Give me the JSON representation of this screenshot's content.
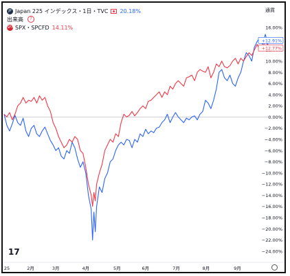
{
  "legend": {
    "main_symbol_badge": "JP",
    "main_title": "Japan 225 インデックス・1日・TVC",
    "main_change": "20.18%",
    "sub_label": "出来高",
    "compare_badge": "SPX",
    "compare_title": "SPX・SPCFD",
    "compare_change": "14.11%"
  },
  "currency_label": "通貨",
  "colors": {
    "japan": "#2962ff",
    "spx": "#f23645",
    "zero_line": "#b2b5be",
    "axis_text": "#131722"
  },
  "chart_data": {
    "type": "line",
    "title": "",
    "xlabel": "",
    "ylabel": "",
    "ylim": [
      -25,
      17
    ],
    "yticks": [
      "16.00%",
      "14.00%",
      "12.00%",
      "10.00%",
      "8.00%",
      "6.00%",
      "4.00%",
      "2.00%",
      "0.00%",
      "−2.00%",
      "−4.00%",
      "−6.00%",
      "−8.00%",
      "−10.00%",
      "−12.00%",
      "−14.00%",
      "−16.00%",
      "−18.00%",
      "−20.00%",
      "−22.00%",
      "−24.00%"
    ],
    "ytick_values": [
      16,
      14,
      12,
      10,
      8,
      6,
      4,
      2,
      0,
      -2,
      -4,
      -6,
      -8,
      -10,
      -12,
      -14,
      -16,
      -18,
      -20,
      -22,
      -24
    ],
    "xticks": [
      "25",
      "2月",
      "3月",
      "4月",
      "5月",
      "6月",
      "7月",
      "8月",
      "9月"
    ],
    "xtick_values": [
      0,
      39,
      76,
      120,
      166,
      208,
      253,
      297,
      343
    ],
    "x_range": [
      0,
      390
    ],
    "last_labels": [
      {
        "series": "Japan 225",
        "text": "+12.91%",
        "value": 12.91
      },
      {
        "series": "SPX",
        "text": "+12.77%",
        "value": 12.77
      }
    ],
    "series": [
      {
        "name": "Japan 225",
        "color": "#2962ff",
        "x": [
          0,
          4,
          8,
          12,
          16,
          20,
          24,
          28,
          32,
          36,
          40,
          44,
          48,
          52,
          56,
          60,
          64,
          68,
          72,
          76,
          80,
          84,
          88,
          92,
          96,
          100,
          104,
          108,
          112,
          116,
          120,
          124,
          128,
          130,
          132,
          134,
          136,
          140,
          144,
          148,
          152,
          156,
          160,
          164,
          168,
          172,
          176,
          180,
          184,
          188,
          192,
          196,
          200,
          204,
          208,
          212,
          216,
          220,
          224,
          228,
          232,
          236,
          240,
          244,
          248,
          252,
          256,
          260,
          264,
          268,
          272,
          276,
          280,
          284,
          288,
          292,
          296,
          300,
          304,
          308,
          312,
          316,
          320,
          324,
          328,
          332,
          336,
          340,
          344,
          348,
          352,
          356,
          360,
          364,
          368,
          372,
          376,
          380,
          384,
          388
        ],
        "y": [
          0.5,
          -1.5,
          -2.5,
          -1.2,
          0.3,
          -1.0,
          -1.5,
          -0.2,
          -2.5,
          -3.5,
          -2.0,
          -1.5,
          -3.0,
          -3.5,
          -2.5,
          -1.8,
          -3.0,
          -4.2,
          -5.0,
          -6.0,
          -5.5,
          -7.0,
          -7.5,
          -6.0,
          -6.5,
          -4.5,
          -5.5,
          -7.5,
          -9.0,
          -8.0,
          -10.0,
          -14.0,
          -16.5,
          -22.0,
          -17.0,
          -20.5,
          -16.0,
          -12.5,
          -13.5,
          -11.0,
          -10.0,
          -8.0,
          -7.5,
          -6.0,
          -5.0,
          -4.5,
          -5.0,
          -4.0,
          -4.2,
          -5.5,
          -4.0,
          -4.5,
          -3.0,
          -3.5,
          -2.2,
          -3.0,
          -2.5,
          -2.8,
          -2.0,
          -1.8,
          -1.0,
          -0.5,
          0.5,
          -1.0,
          0.0,
          0.8,
          0.0,
          -0.5,
          -1.0,
          -0.2,
          -0.5,
          0.0,
          0.2,
          -0.5,
          0.5,
          1.0,
          3.0,
          2.5,
          1.5,
          3.0,
          5.0,
          8.0,
          8.5,
          7.0,
          6.5,
          7.5,
          6.0,
          5.5,
          7.0,
          8.0,
          10.0,
          11.5,
          11.0,
          10.0,
          12.5,
          13.5,
          14.2,
          13.0,
          14.8,
          12.91
        ]
      },
      {
        "name": "SPX",
        "color": "#f23645",
        "x": [
          0,
          4,
          8,
          12,
          16,
          20,
          24,
          28,
          32,
          36,
          40,
          44,
          48,
          52,
          56,
          60,
          64,
          68,
          72,
          76,
          80,
          84,
          88,
          92,
          96,
          100,
          104,
          108,
          112,
          116,
          120,
          124,
          128,
          130,
          132,
          134,
          136,
          140,
          144,
          148,
          152,
          156,
          160,
          164,
          168,
          172,
          176,
          180,
          184,
          188,
          192,
          196,
          200,
          204,
          208,
          212,
          216,
          220,
          224,
          228,
          232,
          236,
          240,
          244,
          248,
          252,
          256,
          260,
          264,
          268,
          272,
          276,
          280,
          284,
          288,
          292,
          296,
          300,
          304,
          308,
          312,
          316,
          320,
          324,
          328,
          332,
          336,
          340,
          344,
          348,
          352,
          356,
          360,
          364,
          368,
          372,
          376,
          380,
          384,
          388
        ],
        "y": [
          0.5,
          0.0,
          0.8,
          -0.5,
          0.5,
          2.0,
          2.5,
          3.5,
          2.5,
          3.0,
          2.8,
          3.5,
          2.5,
          3.8,
          3.0,
          3.5,
          2.0,
          1.0,
          -1.0,
          -2.0,
          -3.5,
          -4.5,
          -5.5,
          -5.0,
          -4.0,
          -4.5,
          -3.5,
          -4.0,
          -6.0,
          -6.5,
          -9.0,
          -12.0,
          -14.0,
          -16.0,
          -13.5,
          -15.0,
          -12.0,
          -10.0,
          -8.5,
          -6.0,
          -5.0,
          -4.0,
          -4.5,
          -3.0,
          -3.5,
          -1.0,
          0.5,
          0.0,
          0.3,
          1.0,
          0.2,
          0.8,
          1.5,
          2.0,
          1.5,
          2.8,
          3.0,
          3.5,
          4.0,
          4.5,
          3.5,
          4.5,
          4.0,
          5.5,
          5.0,
          6.0,
          6.5,
          6.0,
          5.5,
          7.0,
          7.2,
          7.5,
          6.5,
          8.0,
          8.5,
          8.2,
          8.0,
          9.0,
          7.0,
          8.0,
          9.5,
          9.0,
          10.0,
          9.0,
          8.8,
          9.2,
          10.0,
          10.5,
          9.5,
          10.5,
          10.0,
          10.8,
          11.5,
          11.0,
          12.0,
          13.0,
          12.0,
          12.5,
          13.5,
          12.77
        ]
      }
    ]
  }
}
